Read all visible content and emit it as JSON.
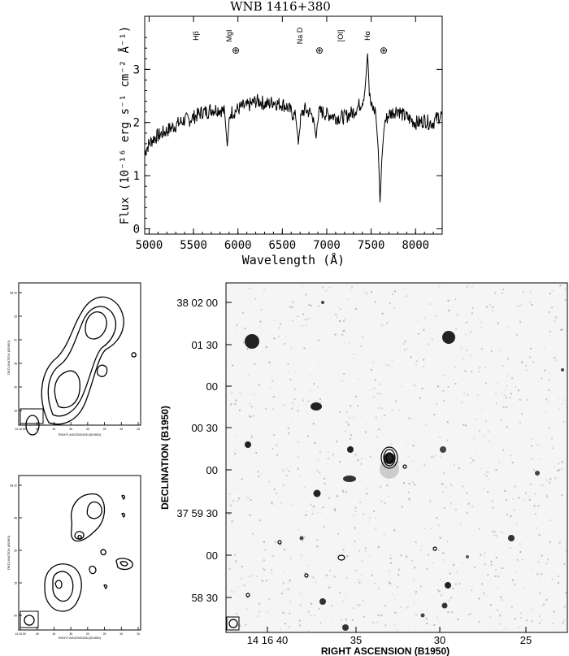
{
  "chart_data": {
    "type": "line",
    "title": "WNB 1416+380",
    "xlabel": "Wavelength (Å)",
    "ylabel": "Flux (10⁻¹⁶ erg s⁻¹ cm⁻² Å⁻¹)",
    "xlim": [
      4950,
      8300
    ],
    "ylim": [
      -0.1,
      4.0
    ],
    "x_ticks": [
      5000,
      5500,
      6000,
      6500,
      7000,
      7500,
      8000
    ],
    "y_ticks": [
      0,
      1,
      2,
      3
    ],
    "grid": false,
    "series": [
      {
        "x": [
          4950,
          5000,
          5050,
          5100,
          5150,
          5200,
          5250,
          5300,
          5350,
          5400,
          5450,
          5500,
          5550,
          5600,
          5650,
          5700,
          5750,
          5800,
          5850,
          5880,
          5900,
          5920,
          5950,
          6000,
          6050,
          6100,
          6150,
          6200,
          6250,
          6300,
          6350,
          6400,
          6450,
          6500,
          6550,
          6600,
          6650,
          6680,
          6700,
          6720,
          6750,
          6800,
          6850,
          6880,
          6900,
          6920,
          6950,
          7000,
          7050,
          7100,
          7150,
          7200,
          7250,
          7300,
          7350,
          7400,
          7430,
          7460,
          7480,
          7500,
          7550,
          7580,
          7600,
          7620,
          7650,
          7700,
          7750,
          7800,
          7850,
          7900,
          7950,
          8000,
          8050,
          8100,
          8150,
          8200,
          8250,
          8300
        ],
        "y": [
          1.45,
          1.6,
          1.7,
          1.75,
          1.8,
          1.85,
          1.9,
          1.95,
          2.0,
          2.05,
          2.05,
          2.1,
          2.15,
          2.2,
          2.2,
          2.25,
          2.25,
          2.25,
          2.2,
          1.55,
          2.0,
          2.2,
          2.2,
          2.25,
          2.3,
          2.3,
          2.35,
          2.4,
          2.4,
          2.35,
          2.35,
          2.4,
          2.35,
          2.35,
          2.3,
          2.2,
          2.1,
          1.65,
          2.0,
          2.15,
          2.25,
          2.2,
          2.1,
          1.7,
          2.1,
          2.2,
          2.2,
          2.15,
          2.15,
          2.1,
          2.1,
          2.1,
          2.15,
          2.2,
          2.3,
          2.4,
          2.6,
          3.3,
          2.55,
          2.3,
          2.2,
          1.5,
          0.5,
          1.3,
          2.0,
          2.15,
          2.2,
          2.25,
          2.15,
          2.1,
          2.05,
          2.0,
          2.0,
          2.05,
          2.0,
          2.0,
          2.1,
          2.15
        ]
      }
    ],
    "annotations": [
      {
        "label": "Hβ",
        "x": 4861
      },
      {
        "label": "MgI",
        "x": 5175
      },
      {
        "label": "Na D",
        "x": 5893
      },
      {
        "label": "[OI]",
        "x": 6300
      },
      {
        "label": "Hα",
        "x": 6563
      }
    ],
    "telluric_markers": [
      {
        "label": "⊕",
        "x": 5890
      },
      {
        "label": "⊕",
        "x": 6880
      },
      {
        "label": "⊕",
        "x": 7620
      }
    ]
  },
  "radio_maps": {
    "top": {
      "y_axis_text": "DECLINATION (B1950)",
      "x_axis_text": "RIGHT ASCENSION (B1950)",
      "y_ticks": [
        "38 02",
        "15",
        "01",
        "45",
        "30",
        "15"
      ],
      "x_ticks": [
        "14 16 50",
        "45",
        "40",
        "35",
        "30",
        "25",
        "20",
        "15"
      ]
    },
    "bottom": {
      "y_axis_text": "DECLINATION (B1950)",
      "x_axis_text": "RIGHT ASCENSION (B1950)",
      "y_ticks": [
        "38 02",
        "45",
        "30",
        "15",
        "00"
      ],
      "x_ticks": [
        "14 16 50",
        "45",
        "40",
        "35",
        "30",
        "25",
        "20",
        "15"
      ]
    }
  },
  "optical_image": {
    "xlabel": "RIGHT ASCENSION (B1950)",
    "ylabel": "DECLINATION (B1950)",
    "y_ticks": [
      "38 02 00",
      "01 30",
      "00",
      "00 30",
      "00",
      "37 59 30",
      "00",
      "58 30"
    ],
    "x_ticks": [
      "14 16 40",
      "35",
      "30",
      "25"
    ]
  }
}
